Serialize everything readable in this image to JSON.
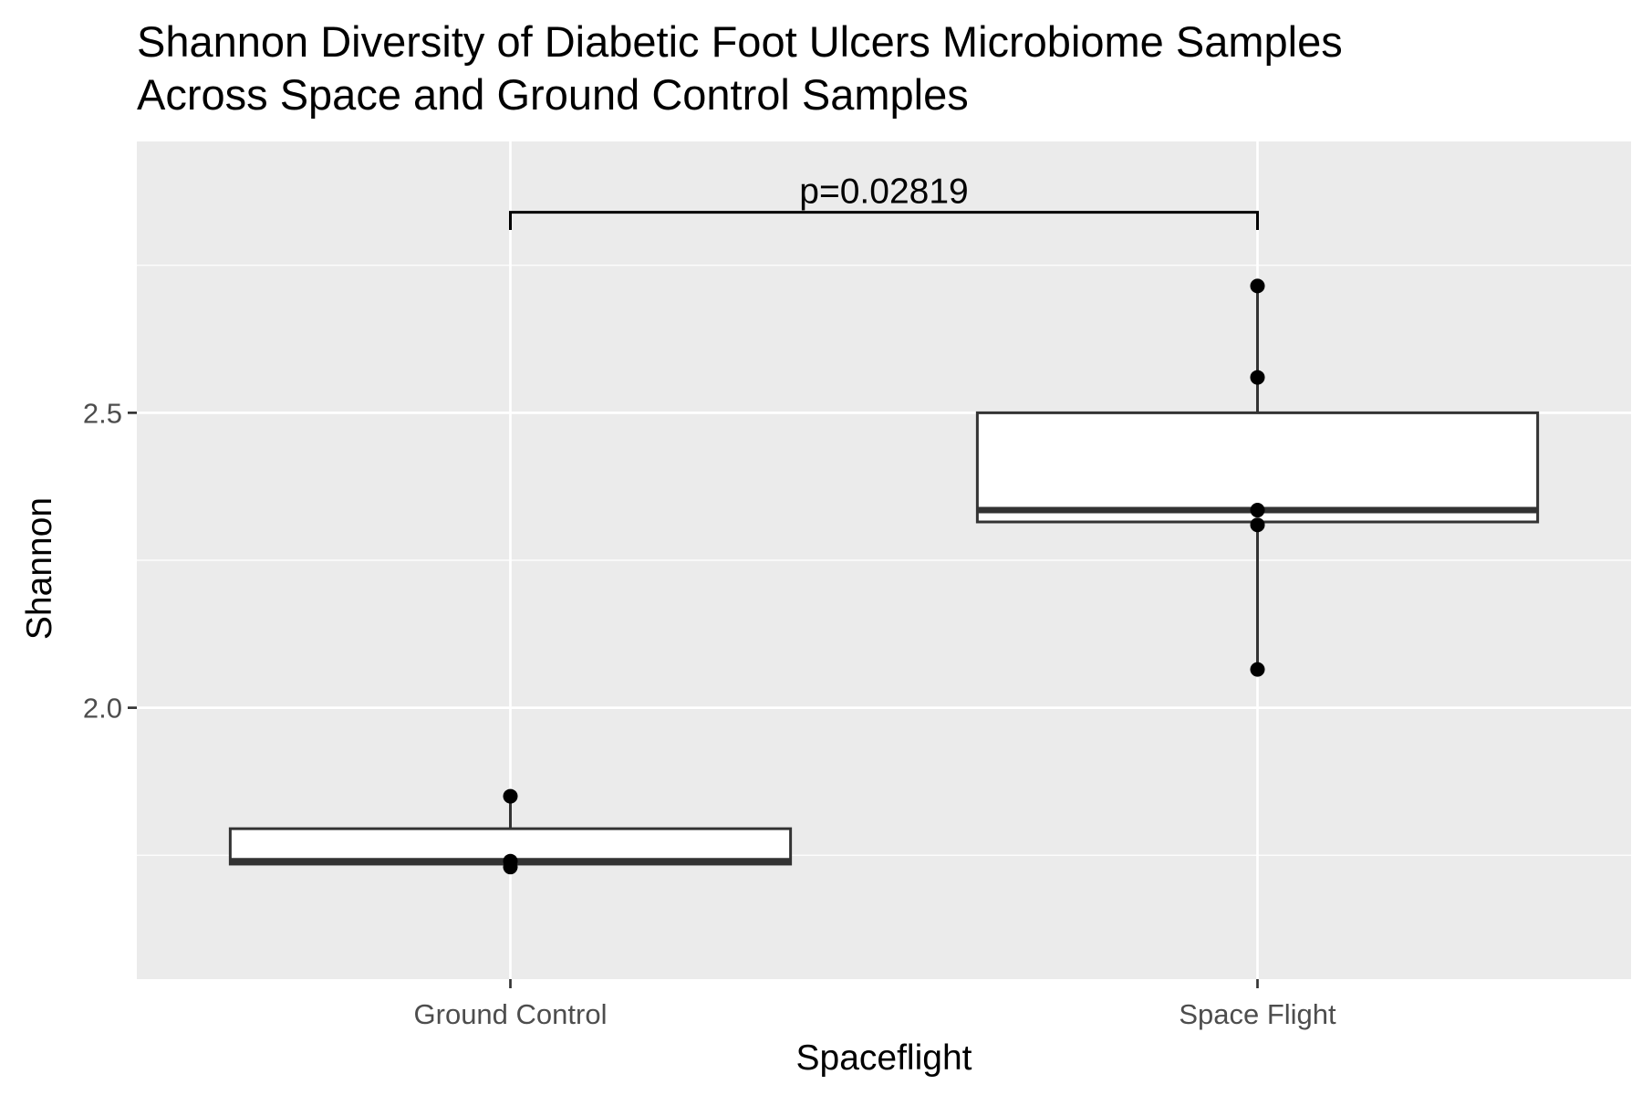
{
  "chart_data": {
    "type": "box",
    "title": "Shannon Diversity of Diabetic Foot Ulcers Microbiome Samples",
    "subtitle": "Across Space and Ground Control Samples",
    "xlabel": "Spaceflight",
    "ylabel": "Shannon",
    "categories": [
      "Ground Control",
      "Space Flight"
    ],
    "ylim": [
      1.54,
      2.96
    ],
    "yticks": [
      2.0,
      2.5
    ],
    "ytick_labels": [
      "2.0",
      "2.5"
    ],
    "grid": true,
    "boxes": [
      {
        "category": "Ground Control",
        "min": 1.73,
        "q1": 1.735,
        "median": 1.74,
        "q3": 1.795,
        "max": 1.85
      },
      {
        "category": "Space Flight",
        "min": 2.065,
        "q1": 2.315,
        "median": 2.335,
        "q3": 2.5,
        "max": 2.715
      }
    ],
    "points": [
      {
        "category": "Ground Control",
        "values": [
          1.85,
          1.74,
          1.73
        ]
      },
      {
        "category": "Space Flight",
        "values": [
          2.715,
          2.56,
          2.335,
          2.31,
          2.065
        ]
      }
    ],
    "annotation": {
      "text": "p=0.02819",
      "from": "Ground Control",
      "to": "Space Flight",
      "y": 2.84,
      "tip_y": 2.81
    }
  }
}
